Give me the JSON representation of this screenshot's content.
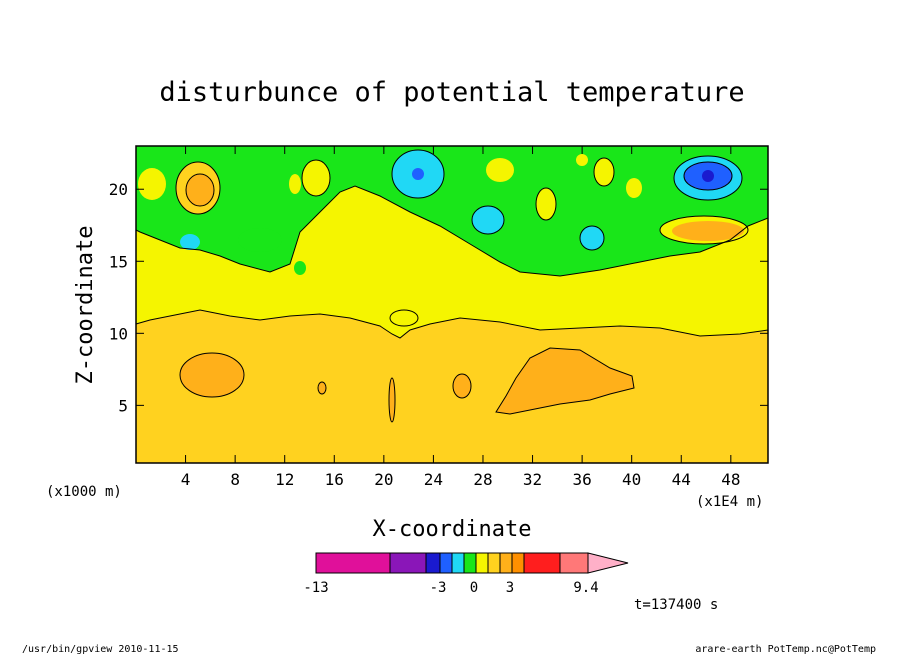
{
  "chart_data": {
    "type": "contour",
    "title": "disturbunce of potential temperature",
    "xlabel": "X-coordinate",
    "ylabel": "Z-coordinate",
    "x_unit_left": "(x1000 m)",
    "x_unit_right": "(x1E4 m)",
    "xlim": [
      0,
      51
    ],
    "ylim": [
      1,
      23
    ],
    "xticks": [
      4,
      8,
      12,
      16,
      20,
      24,
      28,
      32,
      36,
      40,
      44,
      48
    ],
    "yticks": [
      5,
      10,
      15,
      20
    ],
    "colorbar": {
      "tick_labels": [
        {
          "value": -13,
          "label": "-13"
        },
        {
          "value": -3,
          "label": "-3"
        },
        {
          "value": 0,
          "label": "0"
        },
        {
          "value": 3,
          "label": "3"
        },
        {
          "value": 9.4,
          "label": "9.4"
        }
      ],
      "colors": [
        "#e0109a",
        "#8a16b8",
        "#1a1acf",
        "#1f60ff",
        "#20d8f5",
        "#19e619",
        "#f5f500",
        "#ffd21f",
        "#ffb01a",
        "#ff9000",
        "#ff1e1e",
        "#ff7878",
        "#ffb0c8"
      ]
    },
    "regions": [
      {
        "name": "upper-disturbance",
        "color": "#19e619"
      },
      {
        "name": "transition",
        "color": "#f5f500"
      },
      {
        "name": "lower-layer",
        "color": "#ffd21f"
      },
      {
        "name": "warm-cells",
        "color": "#ffb01a"
      },
      {
        "name": "cold-cells",
        "color": "#20d8f5"
      },
      {
        "name": "strong-cold-cell",
        "color": "#1f60ff"
      }
    ],
    "time_label": "t=137400 s"
  },
  "footer": {
    "left": "/usr/bin/gpview  2010-11-15",
    "right": "arare-earth_PotTemp.nc@PotTemp"
  }
}
